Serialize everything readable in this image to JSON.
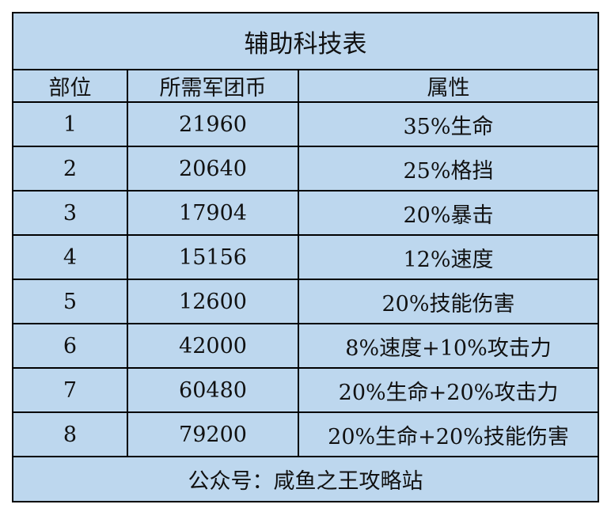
{
  "title": "辅助科技表",
  "headers": [
    "部位",
    "所需军团币",
    "属性"
  ],
  "rows": [
    {
      "part": "1",
      "cost": "21960",
      "attr": "35%生命"
    },
    {
      "part": "2",
      "cost": "20640",
      "attr": "25%格挡"
    },
    {
      "part": "3",
      "cost": "17904",
      "attr": "20%暴击"
    },
    {
      "part": "4",
      "cost": "15156",
      "attr": "12%速度"
    },
    {
      "part": "5",
      "cost": "12600",
      "attr": "20%技能伤害"
    },
    {
      "part": "6",
      "cost": "42000",
      "attr": "8%速度+10%攻击力"
    },
    {
      "part": "7",
      "cost": "60480",
      "attr": "20%生命+20%攻击力"
    },
    {
      "part": "8",
      "cost": "79200",
      "attr": "20%生命+20%技能伤害"
    }
  ],
  "footer": "公众号：咸鱼之王攻略站",
  "colors": {
    "background": "#bdd7ee",
    "border": "#000000"
  }
}
